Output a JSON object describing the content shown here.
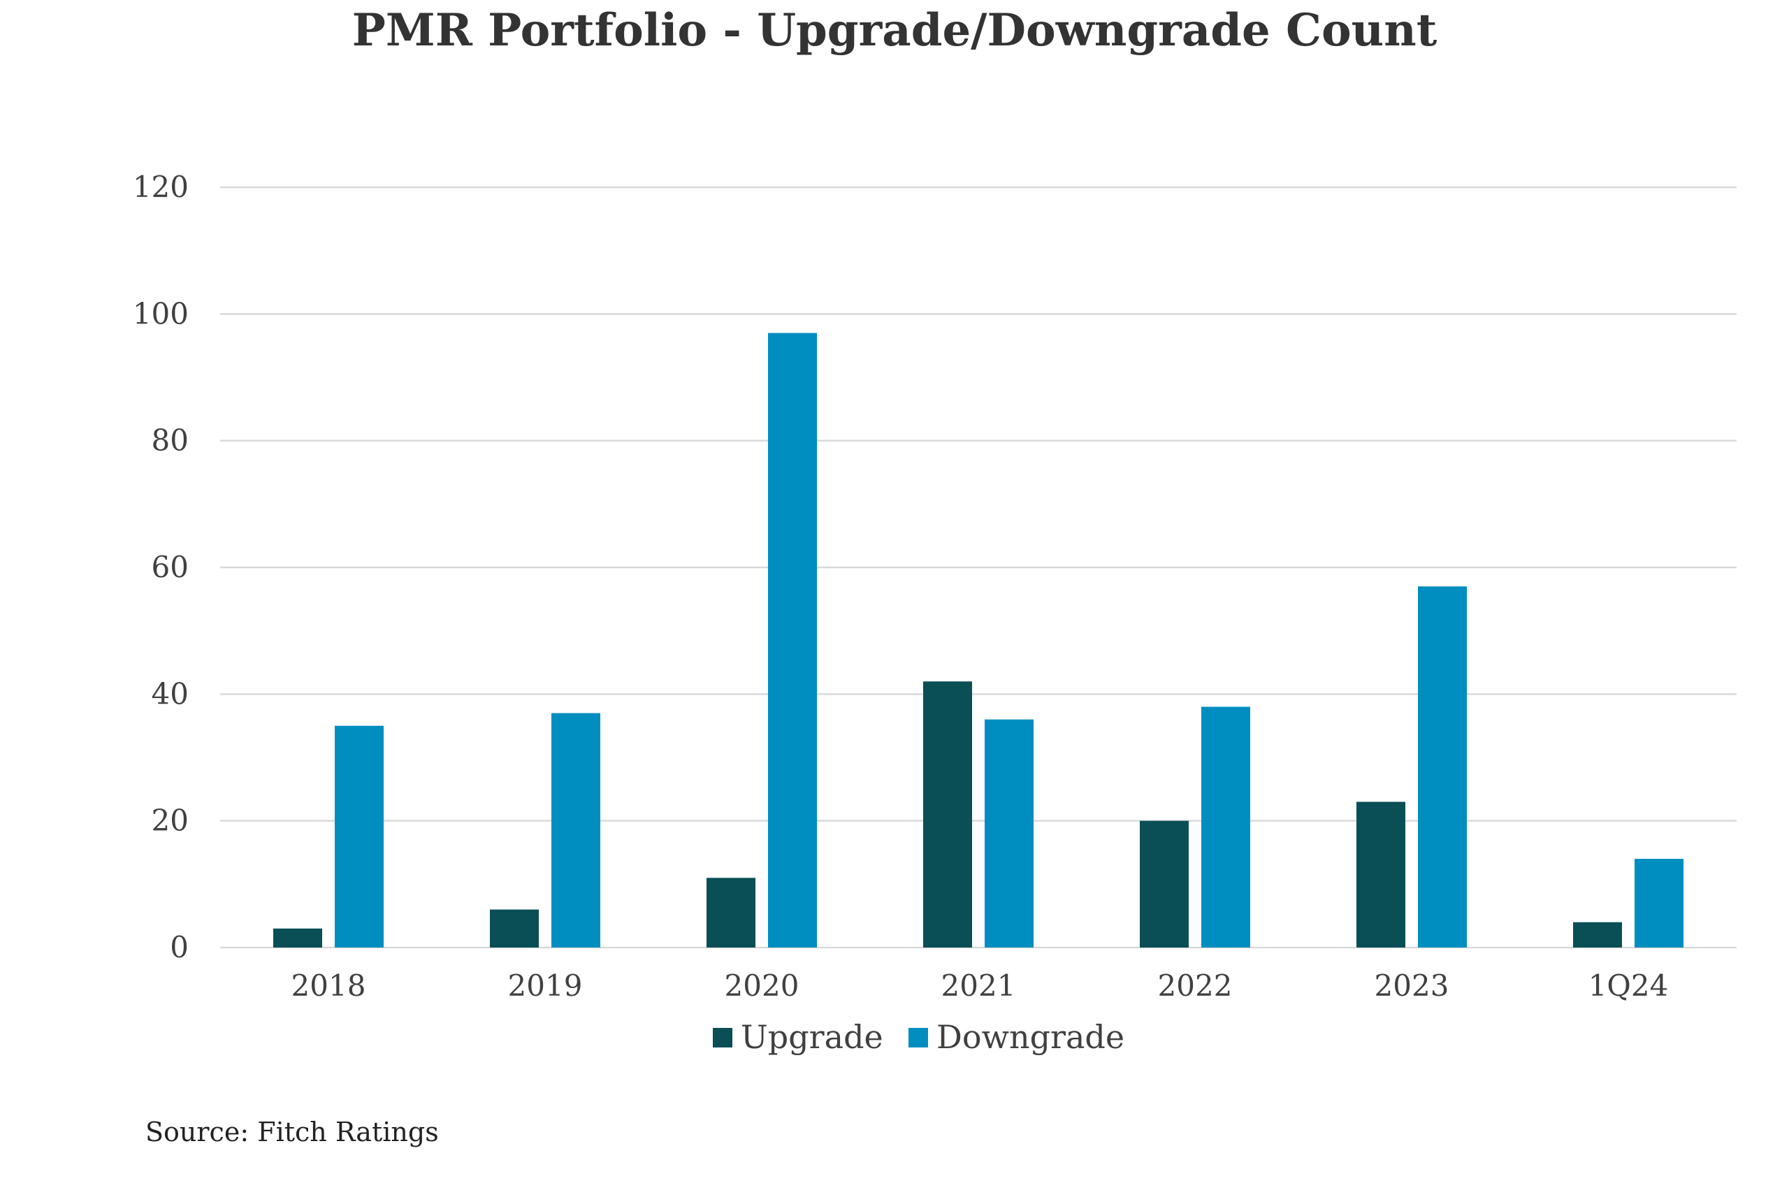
{
  "title": "PMR Portfolio - Upgrade/Downgrade Count",
  "source": "Source: Fitch Ratings",
  "colors": {
    "upgrade": "#094F55",
    "downgrade": "#008EC0",
    "grid": "#D9D9D9",
    "axis_text": "#404040"
  },
  "chart_data": {
    "type": "bar",
    "title": "PMR Portfolio - Upgrade/Downgrade Count",
    "xlabel": "",
    "ylabel": "",
    "categories": [
      "2018",
      "2019",
      "2020",
      "2021",
      "2022",
      "2023",
      "1Q24"
    ],
    "series": [
      {
        "name": "Upgrade",
        "color": "#094F55",
        "values": [
          3,
          6,
          11,
          42,
          20,
          23,
          4
        ]
      },
      {
        "name": "Downgrade",
        "color": "#008EC0",
        "values": [
          35,
          37,
          97,
          36,
          38,
          57,
          14
        ]
      }
    ],
    "ylim": [
      0,
      120
    ],
    "yticks": [
      0,
      20,
      40,
      60,
      80,
      100,
      120
    ],
    "grid": true,
    "legend": "bottom-center"
  }
}
